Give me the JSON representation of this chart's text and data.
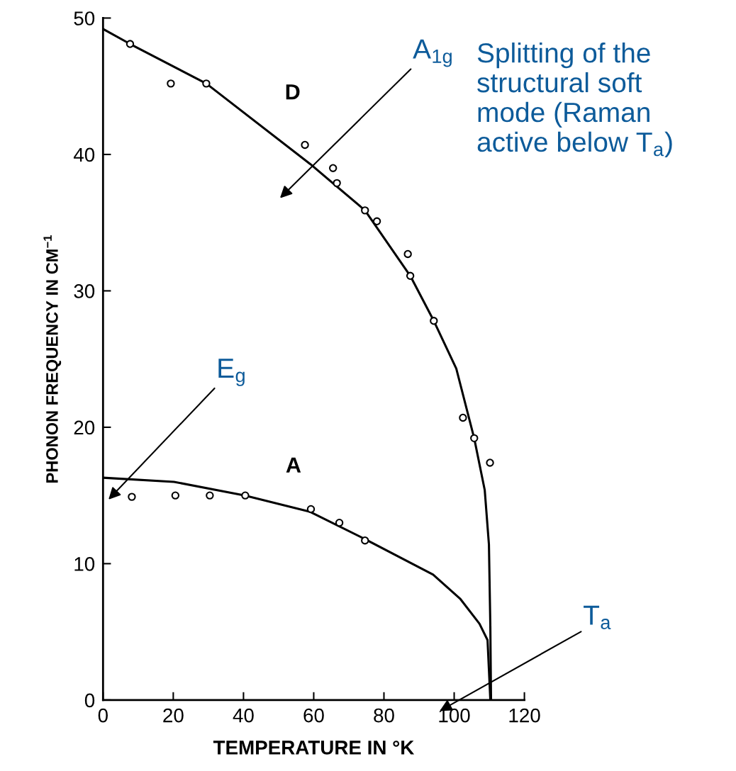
{
  "chart_data": {
    "type": "line",
    "xlabel": "TEMPERATURE IN °K",
    "ylabel": "PHONON FREQUENCY IN CM$^{−1}$",
    "xlim": [
      0,
      120
    ],
    "xticks": [
      0,
      20,
      40,
      60,
      80,
      100,
      120
    ],
    "ylim": [
      0,
      50
    ],
    "yticks": [
      0,
      10,
      20,
      30,
      40,
      50
    ],
    "grid": false,
    "line_style": "solid",
    "series": [
      {
        "name": "D",
        "color": "#000000",
        "marker": "none",
        "x": [
          0,
          7.7,
          29.4,
          59.0,
          74.6,
          87.5,
          94.2,
          100.6,
          105.7,
          108.7,
          109.9,
          110.3,
          110.5
        ],
        "values": [
          49.2,
          48.1,
          45.2,
          39.3,
          35.9,
          31.1,
          27.8,
          24.3,
          19.2,
          15.4,
          11.4,
          5.4,
          0
        ]
      },
      {
        "name": "A",
        "color": "#000000",
        "marker": "none",
        "x": [
          0,
          20.2,
          40.4,
          59.0,
          74.6,
          94.0,
          101.8,
          107.2,
          109.5,
          110.3
        ],
        "values": [
          16.3,
          16.0,
          15.0,
          13.8,
          11.8,
          9.2,
          7.4,
          5.6,
          4.4,
          0
        ]
      },
      {
        "type": "scatter",
        "color": "#000000",
        "marker": "circle",
        "x": [
          7.7,
          19.3,
          29.4,
          57.5,
          65.5,
          66.6,
          74.6,
          78.0,
          86.8,
          87.5,
          94.2,
          102.5,
          105.7,
          110.2
        ],
        "values": [
          48.1,
          45.2,
          45.2,
          40.7,
          39.0,
          37.9,
          35.9,
          35.1,
          32.7,
          31.1,
          27.8,
          20.7,
          19.2,
          17.4
        ]
      },
      {
        "type": "scatter",
        "color": "#000000",
        "marker": "circle",
        "x": [
          8.2,
          20.6,
          30.4,
          40.5,
          59.2,
          67.3,
          74.6
        ],
        "values": [
          14.9,
          15.0,
          15.0,
          15.0,
          14.0,
          13.0,
          11.7
        ]
      }
    ],
    "annotations": [
      "A$_{1g}$",
      "E$_{g}$",
      "T$_{a}$",
      "Splitting of the\nstructural soft\nmode (Raman\nactive below T$_{a}$)"
    ]
  }
}
